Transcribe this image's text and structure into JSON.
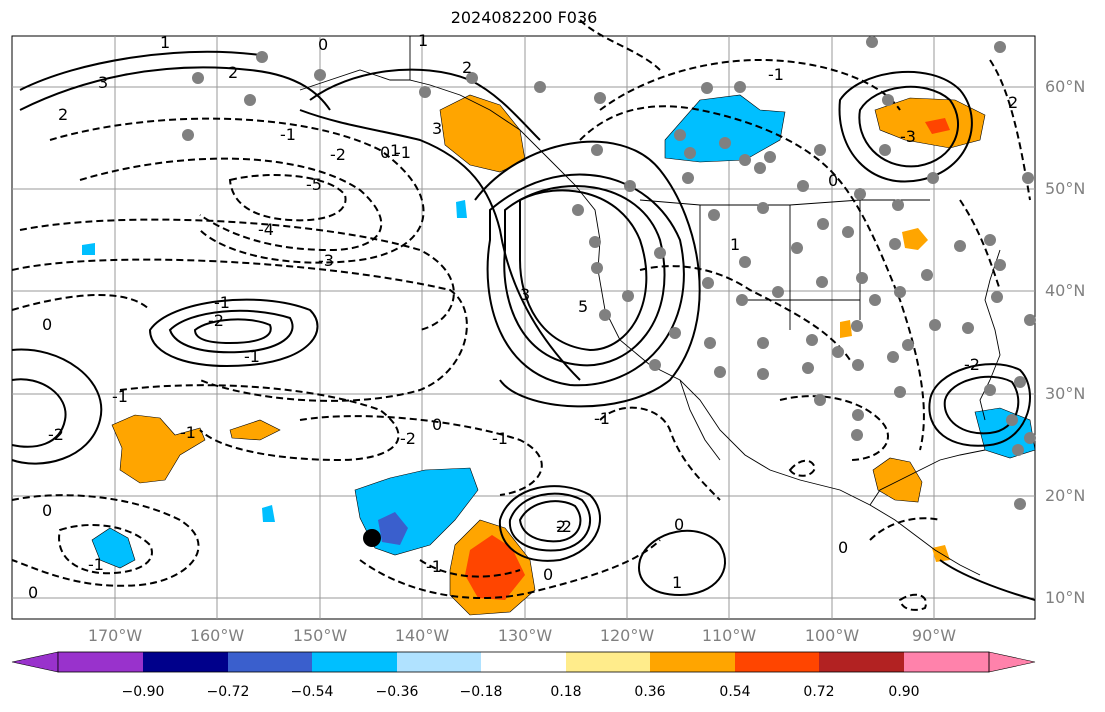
{
  "title": "2024082200 F036",
  "lat_labels": [
    "60°N",
    "50°N",
    "40°N",
    "30°N",
    "20°N",
    "10°N"
  ],
  "lon_labels": [
    "170°W",
    "160°W",
    "150°W",
    "140°W",
    "130°W",
    "120°W",
    "110°W",
    "100°W",
    "90°W"
  ],
  "colorbar": {
    "labels": [
      "−0.90",
      "−0.72",
      "−0.54",
      "−0.36",
      "−0.18",
      "0.18",
      "0.36",
      "0.54",
      "0.72",
      "0.90"
    ],
    "colors": [
      "#9932cc",
      "#00008b",
      "#3a5fcd",
      "#00bfff",
      "#b0e2ff",
      "#ffffff",
      "#ffec8b",
      "#ffa500",
      "#ff4500",
      "#b22222",
      "#ff82ab"
    ]
  },
  "contour_labels": [
    "3",
    "2",
    "2",
    "1",
    "0",
    "3",
    "2",
    "1",
    "0",
    "-1",
    "-1",
    "-2",
    "-5",
    "-4",
    "-3",
    "-1",
    "-2",
    "-1",
    "-2",
    "0",
    "-1",
    "-1",
    "-2",
    "0",
    "-1",
    "2",
    "0",
    "-1",
    "0",
    "-1",
    "5",
    "3",
    "1",
    "2",
    "-1",
    "-3",
    "1",
    "0",
    "-2",
    "-1",
    "0",
    "-2",
    "0",
    "1",
    "0"
  ],
  "fill_colors": {
    "orange": "#ffa500",
    "red": "#ff4500",
    "blue": "#00bfff",
    "darkblue": "#3a5fcd"
  },
  "land_color": "#ffffff",
  "coast_color": "#000000",
  "station_color": "#808080",
  "marker_color": "#000000"
}
